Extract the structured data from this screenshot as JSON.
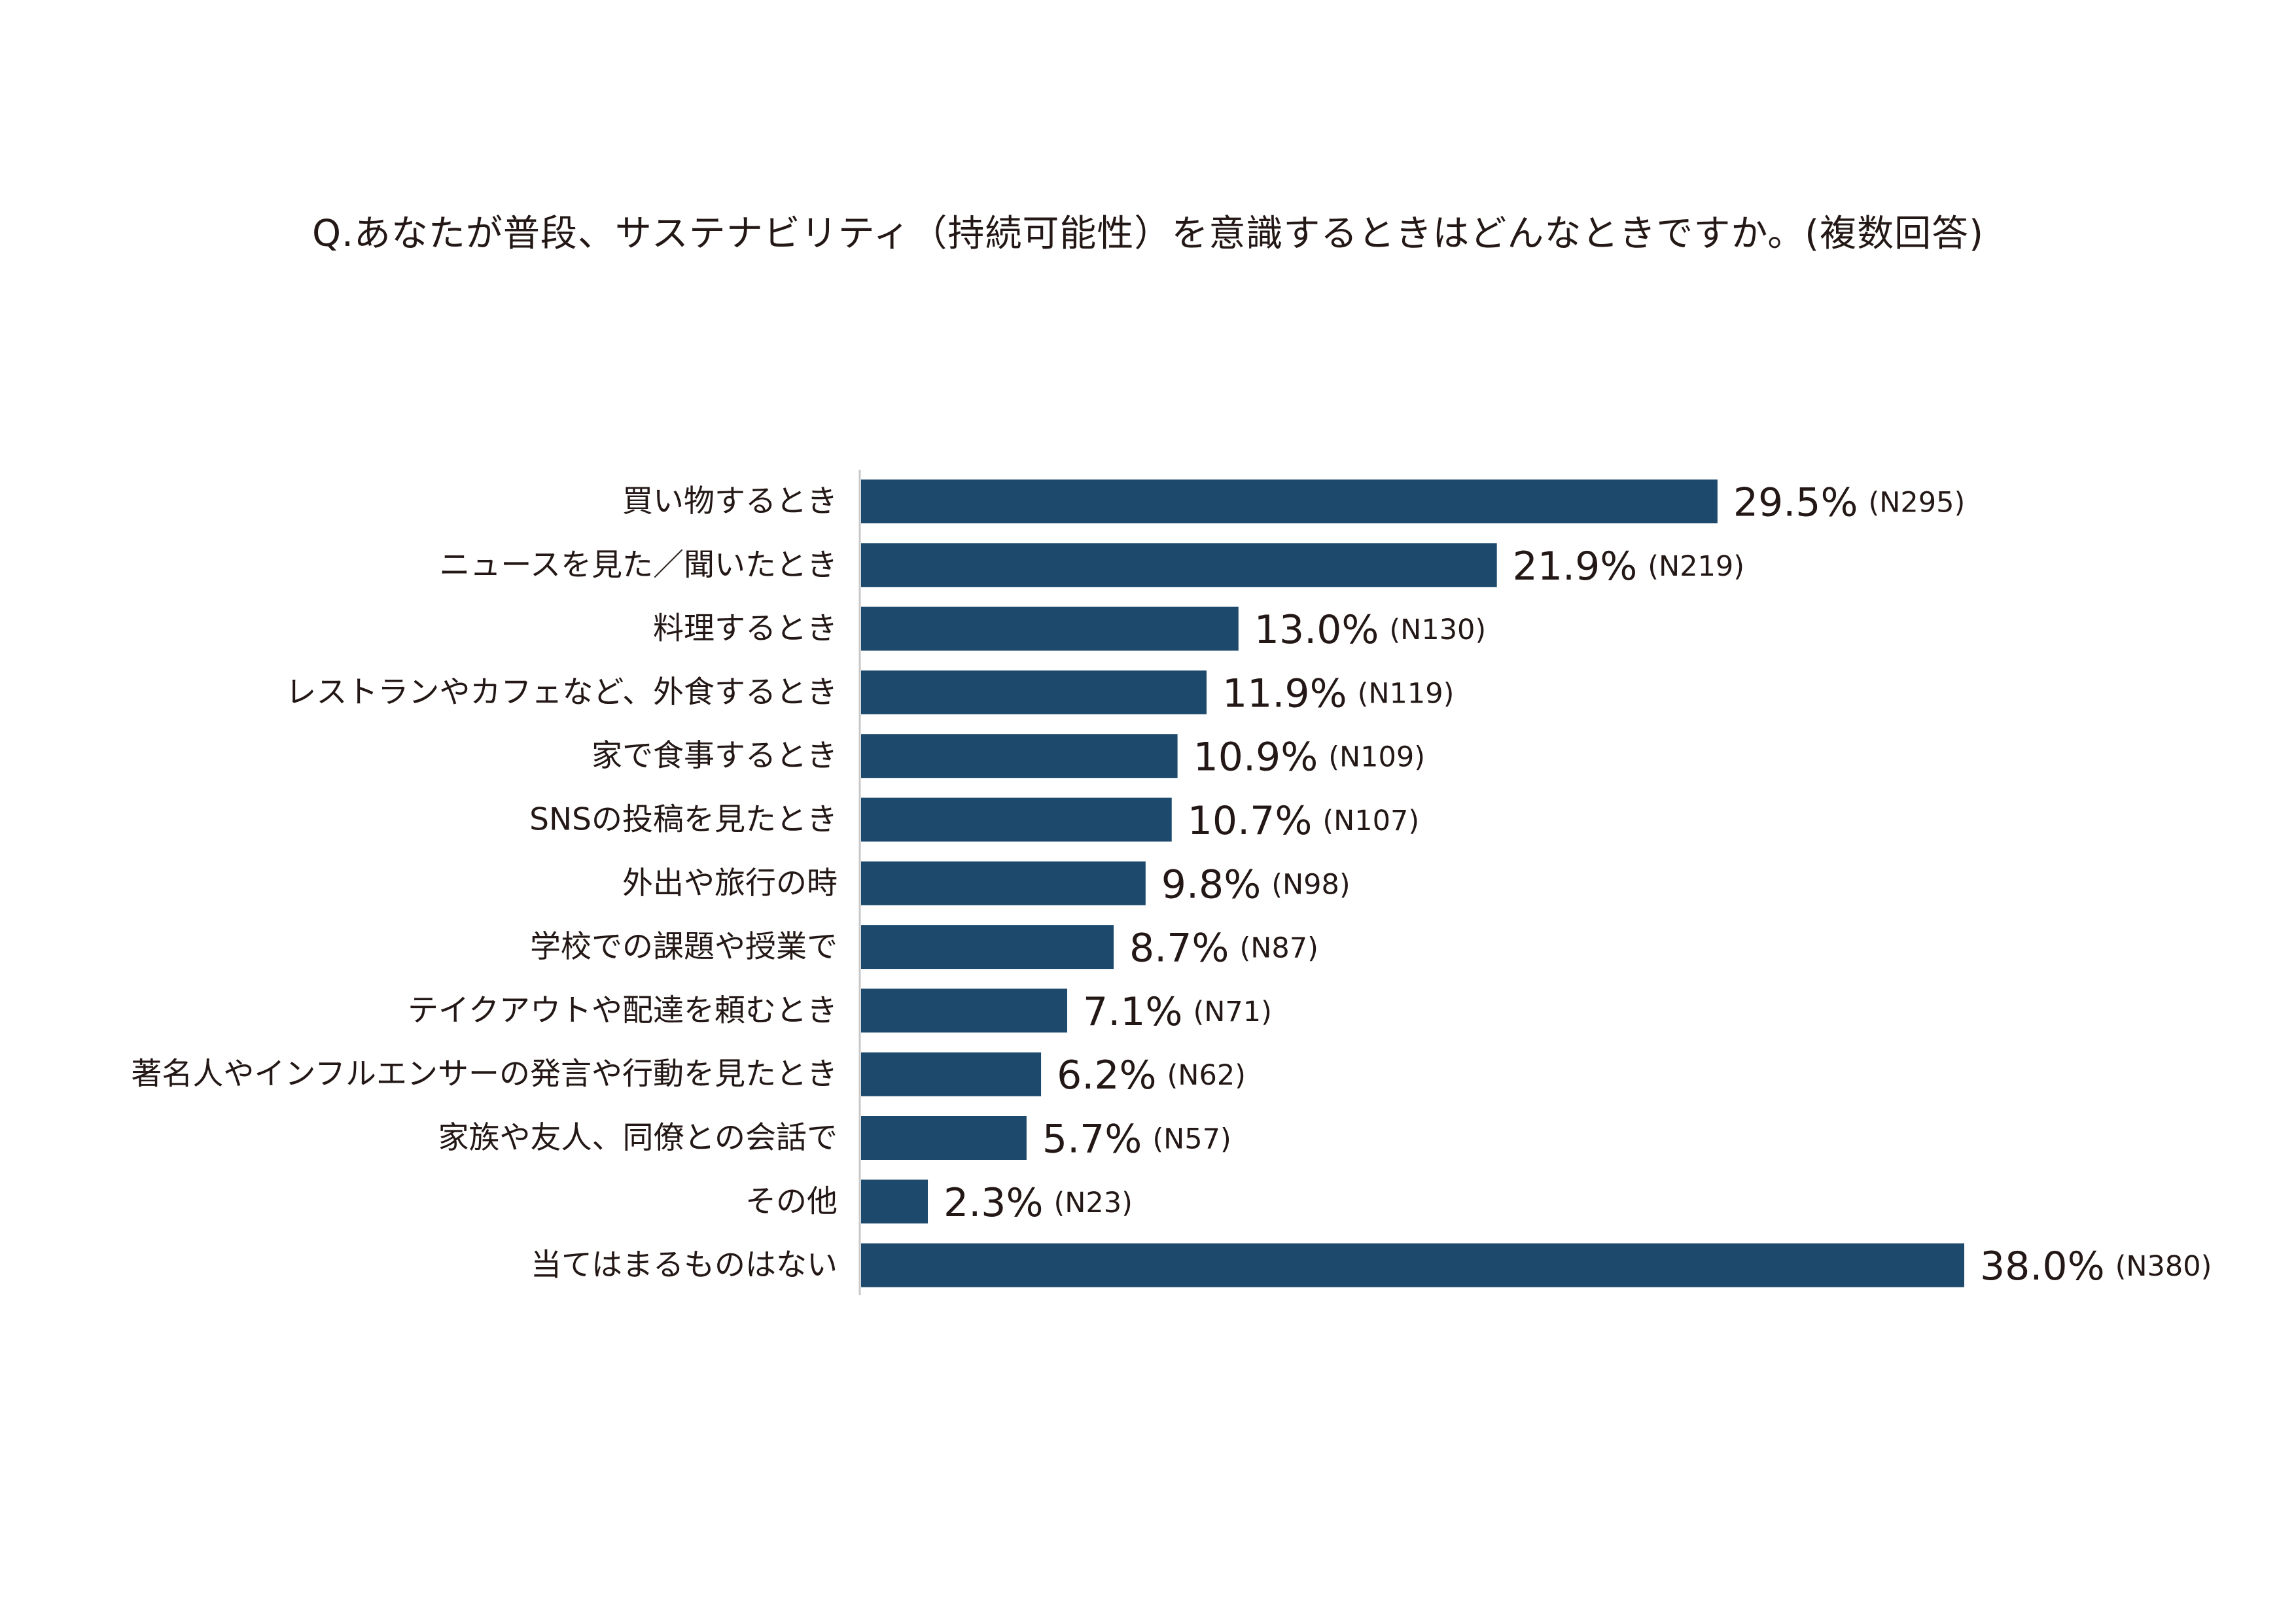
{
  "chart_data": {
    "type": "bar",
    "orientation": "horizontal",
    "title": "Q.あなたが普段、サステナビリティ（持続可能性）を意識するときはどんなときですか。(複数回答)",
    "xlabel": "",
    "ylabel": "",
    "xlim": [
      0,
      38.0
    ],
    "grid": false,
    "legend": "none",
    "color": "#1d4a6c",
    "categories": [
      "買い物するとき",
      "ニュースを見た／聞いたとき",
      "料理するとき",
      "レストランやカフェなど、外食するとき",
      "家で食事するとき",
      "SNSの投稿を見たとき",
      "外出や旅行の時",
      "学校での課題や授業で",
      "テイクアウトや配達を頼むとき",
      "著名人やインフルエンサーの発言や行動を見たとき",
      "家族や友人、同僚との会話で",
      "その他",
      "当てはまるものはない"
    ],
    "values": [
      29.5,
      21.9,
      13.0,
      11.9,
      10.9,
      10.7,
      9.8,
      8.7,
      7.1,
      6.2,
      5.7,
      2.3,
      38.0
    ],
    "value_labels": [
      "29.5%",
      "21.9%",
      "13.0%",
      "11.9%",
      "10.9%",
      "10.7%",
      "9.8%",
      "8.7%",
      "7.1%",
      "6.2%",
      "5.7%",
      "2.3%",
      "38.0%"
    ],
    "n_labels": [
      "(N295)",
      "(N219)",
      "(N130)",
      "(N119)",
      "(N109)",
      "(N107)",
      "(N98)",
      "(N87)",
      "(N71)",
      "(N62)",
      "(N57)",
      "(N23)",
      "(N380)"
    ]
  }
}
